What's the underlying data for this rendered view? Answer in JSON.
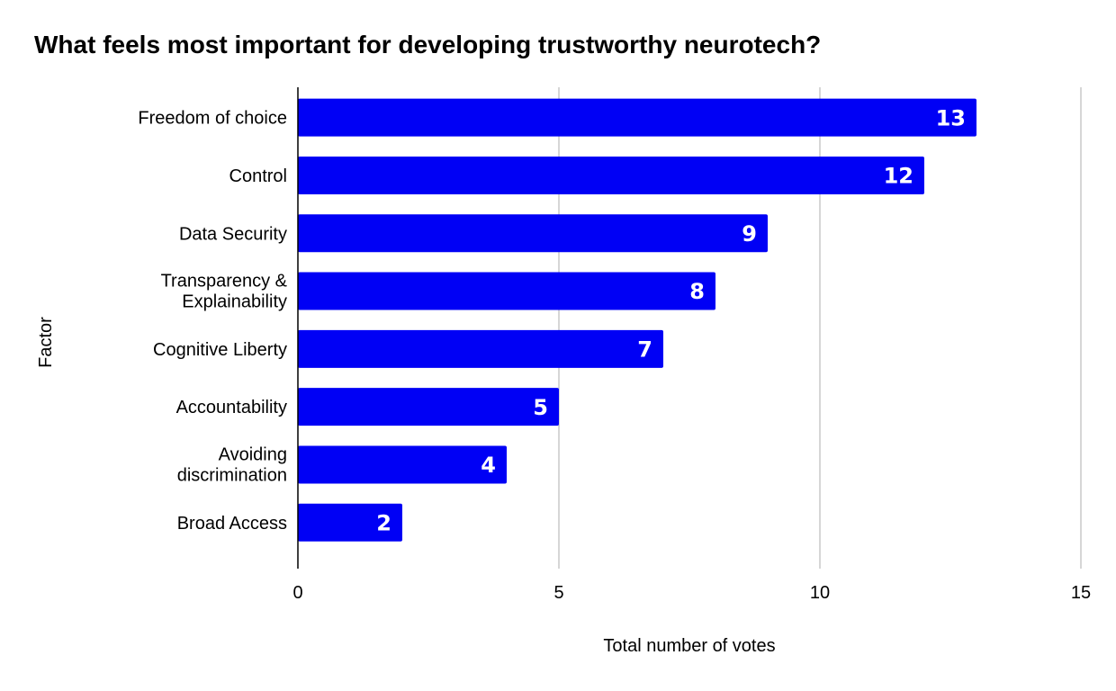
{
  "chart_data": {
    "type": "bar",
    "orientation": "horizontal",
    "title": "What feels most important for developing trustworthy neurotech?",
    "xlabel": "Total number of votes",
    "ylabel": "Factor",
    "categories": [
      "Freedom of choice",
      "Control",
      "Data Security",
      "Transparency & Explainability",
      "Cognitive Liberty",
      "Accountability",
      "Avoiding discrimination",
      "Broad Access"
    ],
    "values": [
      13,
      12,
      9,
      8,
      7,
      5,
      4,
      2
    ],
    "xlim": [
      0,
      15
    ],
    "xticks": [
      0,
      5,
      10,
      15
    ],
    "grid": "vertical",
    "legend": "none",
    "data_labels": true,
    "bar_color": "#0000f5"
  }
}
